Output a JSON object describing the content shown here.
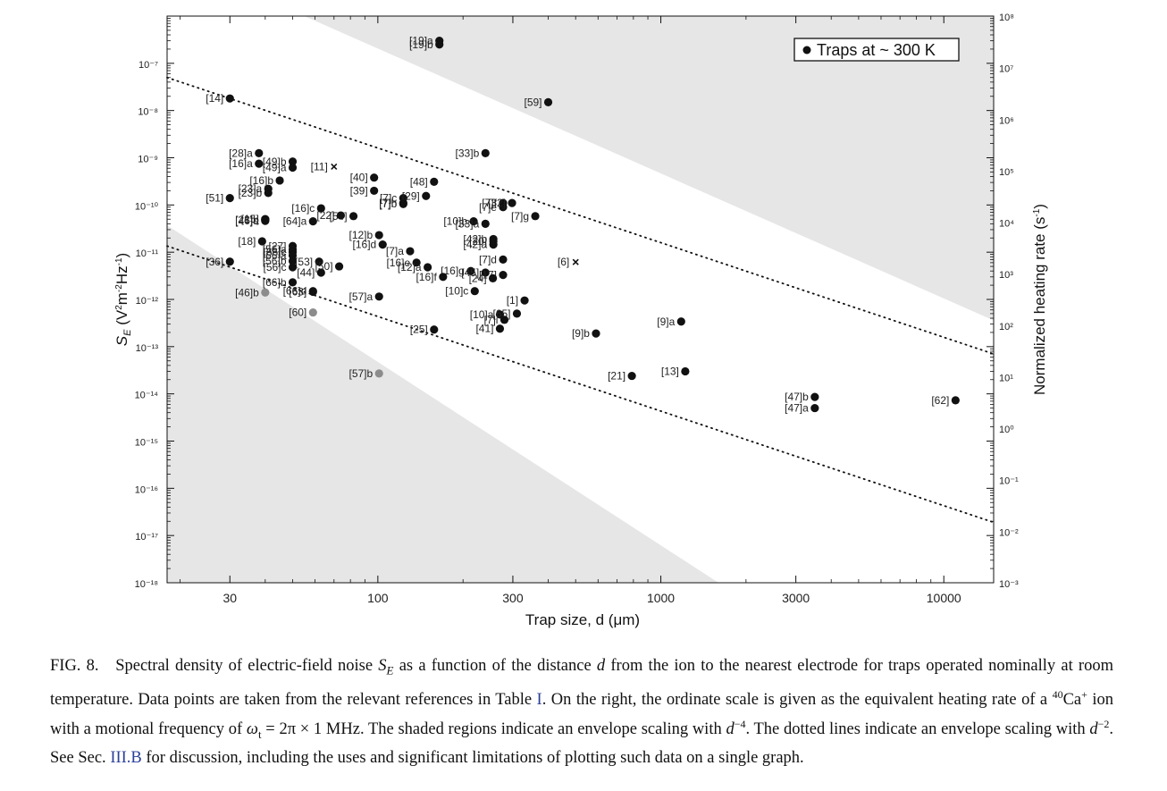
{
  "chart_data": {
    "type": "scatter",
    "xlabel": "Trap size, d (μm)",
    "ylabel_left": "S_E (V^2m^-2Hz^-1)",
    "ylabel_right": "Normalized heating rate (s^-1)",
    "xscale": "log",
    "yscale": "log",
    "xlim": [
      18,
      15000
    ],
    "ylim_left": [
      1e-18,
      1e-06
    ],
    "ylim_right": [
      0.001,
      100000000
    ],
    "x_ticks": [
      30,
      100,
      300,
      1000,
      3000,
      10000
    ],
    "x_tick_labels": [
      "30",
      "100",
      "300",
      "1000",
      "3000",
      "10000"
    ],
    "y_left_ticks": [
      "10⁻⁷",
      "10⁻⁸",
      "10⁻⁹",
      "10⁻¹⁰",
      "10⁻¹¹",
      "10⁻¹²",
      "10⁻¹³",
      "10⁻¹⁴",
      "10⁻¹⁵",
      "10⁻¹⁶",
      "10⁻¹⁷",
      "10⁻¹⁸"
    ],
    "y_right_ticks": [
      "10⁸",
      "10⁷",
      "10⁶",
      "10⁵",
      "10⁴",
      "10³",
      "10²",
      "10¹",
      "10⁰",
      "10⁻¹",
      "10⁻²",
      "10⁻³"
    ],
    "legend": {
      "label": "Traps at ~ 300 K",
      "position": "top-right"
    },
    "shaded_envelope_d4": {
      "upper_boundary": [
        [
          55,
          1e-06
        ],
        [
          2000,
          3.6e-13
        ]
      ],
      "lower_boundary": [
        [
          18,
          3.7e-11
        ],
        [
          1600,
          1e-18
        ]
      ]
    },
    "dotted_envelope_d2": [
      {
        "from": [
          18,
          5e-08
        ],
        "to": [
          15000,
          7e-14
        ]
      },
      {
        "from": [
          18,
          1.35e-11
        ],
        "to": [
          15000,
          1.9e-17
        ]
      }
    ],
    "points": [
      {
        "label": "[19]a",
        "x": 165,
        "y": 3e-07
      },
      {
        "label": "[19]b",
        "x": 165,
        "y": 2.5e-07
      },
      {
        "label": "[59]",
        "x": 400,
        "y": 1.5e-08
      },
      {
        "label": "[14]",
        "x": 30,
        "y": 1.8e-08
      },
      {
        "label": "[28]a",
        "x": 38,
        "y": 1.25e-09
      },
      {
        "label": "[16]a",
        "x": 38,
        "y": 7.5e-10
      },
      {
        "label": "[49]b",
        "x": 50,
        "y": 8.3e-10
      },
      {
        "label": "[49]a",
        "x": 50,
        "y": 6.2e-10
      },
      {
        "label": "[11]",
        "x": 70,
        "y": 6.5e-10,
        "marker": "x"
      },
      {
        "label": "[33]b",
        "x": 240,
        "y": 1.25e-09
      },
      {
        "label": "[16]b",
        "x": 45,
        "y": 3.3e-10
      },
      {
        "label": "[23]a",
        "x": 41,
        "y": 2.2e-10
      },
      {
        "label": "[23]b",
        "x": 41,
        "y": 1.8e-10
      },
      {
        "label": "[51]",
        "x": 30,
        "y": 1.4e-10
      },
      {
        "label": "[40]",
        "x": 97,
        "y": 3.8e-10
      },
      {
        "label": "[39]",
        "x": 97,
        "y": 2e-10
      },
      {
        "label": "[7]c",
        "x": 123,
        "y": 1.4e-10
      },
      {
        "label": "[7]h",
        "x": 123,
        "y": 1.1e-10
      },
      {
        "label": "[48]",
        "x": 158,
        "y": 3.1e-10
      },
      {
        "label": "[29]",
        "x": 148,
        "y": 1.55e-10
      },
      {
        "label": "[16]c",
        "x": 63,
        "y": 8.5e-11
      },
      {
        "label": "[54]",
        "x": 82,
        "y": 5.8e-11
      },
      {
        "label": "[7]b",
        "x": 123,
        "y": 1.05e-10
      },
      {
        "label": "[7]f",
        "x": 277,
        "y": 1.1e-10
      },
      {
        "label": "[7]e",
        "x": 277,
        "y": 9e-11
      },
      {
        "label": "[32]",
        "x": 298,
        "y": 1.1e-10
      },
      {
        "label": "[7]g",
        "x": 360,
        "y": 5.8e-11
      },
      {
        "label": "[15]",
        "x": 40,
        "y": 5e-11,
        "marker": "open"
      },
      {
        "label": "[28]b",
        "x": 40,
        "y": 4.8e-11
      },
      {
        "label": "[46]a",
        "x": 40,
        "y": 4.6e-11
      },
      {
        "label": "[64]a",
        "x": 59,
        "y": 4.5e-11
      },
      {
        "label": "[22]",
        "x": 74,
        "y": 6e-11
      },
      {
        "label": "[10]b",
        "x": 218,
        "y": 4.5e-11
      },
      {
        "label": "[33]a",
        "x": 240,
        "y": 4e-11
      },
      {
        "label": "[12]b",
        "x": 101,
        "y": 2.3e-11
      },
      {
        "label": "[42]b",
        "x": 256,
        "y": 1.9e-11
      },
      {
        "label": "[42]a",
        "x": 256,
        "y": 1.45e-11
      },
      {
        "label": "[20]",
        "x": 256,
        "y": 1.7e-11
      },
      {
        "label": "[27]",
        "x": 50,
        "y": 1.35e-11
      },
      {
        "label": "[56]a",
        "x": 50,
        "y": 1.15e-11
      },
      {
        "label": "[18]",
        "x": 39,
        "y": 1.7e-11
      },
      {
        "label": "[66]c",
        "x": 50,
        "y": 1e-11
      },
      {
        "label": "[16]d",
        "x": 104,
        "y": 1.45e-11
      },
      {
        "label": "[7]a",
        "x": 130,
        "y": 1.05e-11
      },
      {
        "label": "[66]a",
        "x": 50,
        "y": 8.5e-12
      },
      {
        "label": "[36]",
        "x": 30,
        "y": 6.3e-12
      },
      {
        "label": "[56]b",
        "x": 50,
        "y": 6.5e-12
      },
      {
        "label": "[53]",
        "x": 62,
        "y": 6.3e-12
      },
      {
        "label": "[50]",
        "x": 73,
        "y": 5e-12
      },
      {
        "label": "[16]e",
        "x": 137,
        "y": 6e-12
      },
      {
        "label": "[12]a",
        "x": 150,
        "y": 4.8e-12
      },
      {
        "label": "[16]g",
        "x": 213,
        "y": 4e-12
      },
      {
        "label": "[45]",
        "x": 240,
        "y": 3.7e-12
      },
      {
        "label": "[7]d",
        "x": 277,
        "y": 7e-12
      },
      {
        "label": "[17]",
        "x": 277,
        "y": 3.3e-12
      },
      {
        "label": "[6]",
        "x": 500,
        "y": 6.2e-12,
        "marker": "x"
      },
      {
        "label": "[56]c",
        "x": 50,
        "y": 4.8e-12
      },
      {
        "label": "[66]b",
        "x": 50,
        "y": 2.3e-12
      },
      {
        "label": "[44]",
        "x": 63,
        "y": 3.7e-12
      },
      {
        "label": "[16]f",
        "x": 170,
        "y": 3e-12
      },
      {
        "label": "[24]",
        "x": 255,
        "y": 2.8e-12
      },
      {
        "label": "[46]b",
        "x": 40,
        "y": 1.4e-12,
        "marker": "gray"
      },
      {
        "label": "[66]d",
        "x": 59,
        "y": 1.5e-12
      },
      {
        "label": "[63]",
        "x": 59,
        "y": 1.45e-12
      },
      {
        "label": "[57]a",
        "x": 101,
        "y": 1.15e-12
      },
      {
        "label": "[10]c",
        "x": 220,
        "y": 1.5e-12
      },
      {
        "label": "[1]",
        "x": 330,
        "y": 9.5e-13
      },
      {
        "label": "[60]",
        "x": 59,
        "y": 5.3e-13,
        "marker": "gray"
      },
      {
        "label": "[10]a",
        "x": 270,
        "y": 4.8e-13
      },
      {
        "label": "[65]",
        "x": 310,
        "y": 5e-13
      },
      {
        "label": "[41]",
        "x": 270,
        "y": 2.4e-13
      },
      {
        "label": "[7]i",
        "x": 280,
        "y": 3.7e-13
      },
      {
        "label": "[25]",
        "x": 158,
        "y": 2.3e-13
      },
      {
        "label": "[9]b",
        "x": 590,
        "y": 1.9e-13
      },
      {
        "label": "[9]a",
        "x": 1180,
        "y": 3.4e-13
      },
      {
        "label": "[21]",
        "x": 790,
        "y": 2.4e-14
      },
      {
        "label": "[13]",
        "x": 1220,
        "y": 3e-14
      },
      {
        "label": "[57]b",
        "x": 101,
        "y": 2.7e-14,
        "marker": "gray"
      },
      {
        "label": "[47]b",
        "x": 3500,
        "y": 8.6e-15
      },
      {
        "label": "[47]a",
        "x": 3500,
        "y": 5e-15
      },
      {
        "label": "[62]",
        "x": 11000,
        "y": 7.3e-15
      }
    ]
  },
  "caption": {
    "lead": "FIG. 8.",
    "p1": "Spectral density of electric-field noise ",
    "se_symbol": "S",
    "se_sub": "E",
    "p2": " as a function of the distance ",
    "d_symbol": "d",
    "p3": " from the ion to the nearest electrode for traps operated nominally at room temperature. Data points are taken from the relevant references in Table ",
    "table_ref": "I",
    "p4": ". On the right, the ordinate scale is given as the equivalent heating rate of a ",
    "isotope_sup": "40",
    "element": "Ca",
    "charge_sup": "+",
    "p5": " ion with a motional frequency of ",
    "omega_expr": "ω",
    "omega_sub": "t",
    "omega_value": " = 2π × 1 MHz",
    "p6": ". The shaded regions indicate an envelope scaling with ",
    "scale4_base": "d",
    "scale4_exp": "−4",
    "p7": ". The dotted lines indicate an envelope scaling with ",
    "scale2_base": "d",
    "scale2_exp": "−2",
    "p8": ". See Sec. ",
    "section_ref": "III.B",
    "p9": " for discussion, including the uses and significant limitations of plotting such data on a single graph."
  }
}
